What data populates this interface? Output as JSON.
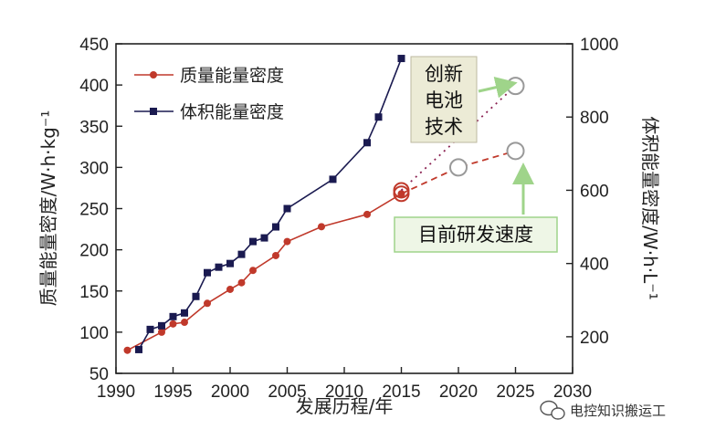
{
  "chart_data": {
    "type": "line",
    "xlabel": "发展历程/年",
    "ylabel_left": "质量能量密度/W·h·kg⁻¹",
    "ylabel_right": "体积能量密度/W·h·L⁻¹",
    "xlim": [
      1990,
      2030
    ],
    "ylim_left": [
      50,
      450
    ],
    "ylim_right": [
      100,
      1000
    ],
    "x_ticks": [
      "1990",
      "1995",
      "2000",
      "2005",
      "2010",
      "2015",
      "2020",
      "2025",
      "2030"
    ],
    "y_left_ticks": [
      "50",
      "100",
      "150",
      "200",
      "250",
      "300",
      "350",
      "400",
      "450"
    ],
    "y_right_ticks": [
      "200",
      "400",
      "600",
      "800",
      "1000"
    ],
    "legend_position": "top-left",
    "series": [
      {
        "name": "质量能量密度",
        "axis": "left",
        "color": "#c0392b",
        "marker": "circle",
        "x": [
          1991,
          1994,
          1995,
          1996,
          1998,
          2000,
          2001,
          2002,
          2004,
          2005,
          2008,
          2012,
          2015
        ],
        "y": [
          78,
          100,
          110,
          112,
          135,
          152,
          160,
          175,
          193,
          210,
          228,
          243,
          268
        ]
      },
      {
        "name": "体积能量密度",
        "axis": "right",
        "color": "#1a1a50",
        "marker": "square",
        "x": [
          1992,
          1993,
          1994,
          1995,
          1996,
          1997,
          1998,
          1999,
          2000,
          2001,
          2002,
          2003,
          2004,
          2005,
          2009,
          2012,
          2013,
          2015
        ],
        "y": [
          165,
          220,
          230,
          255,
          265,
          310,
          375,
          390,
          400,
          425,
          460,
          470,
          500,
          550,
          630,
          730,
          800,
          960
        ]
      }
    ],
    "projections": [
      {
        "label": "目前研发速度",
        "axis": "left",
        "x": [
          2015,
          2020,
          2025
        ],
        "y": [
          268,
          300,
          320
        ],
        "color": "#c0392b"
      },
      {
        "label": "创新电池技术",
        "axis": "right",
        "x": [
          2015,
          2025
        ],
        "y": [
          600,
          885
        ],
        "color": "#8b2252"
      }
    ]
  },
  "annotations": {
    "innovation_box_lines": [
      "创新",
      "电池",
      "技术"
    ],
    "current_rate_box": "目前研发速度"
  },
  "watermark": {
    "text": "电控知识搬运工",
    "icon": "wechat-icon"
  }
}
